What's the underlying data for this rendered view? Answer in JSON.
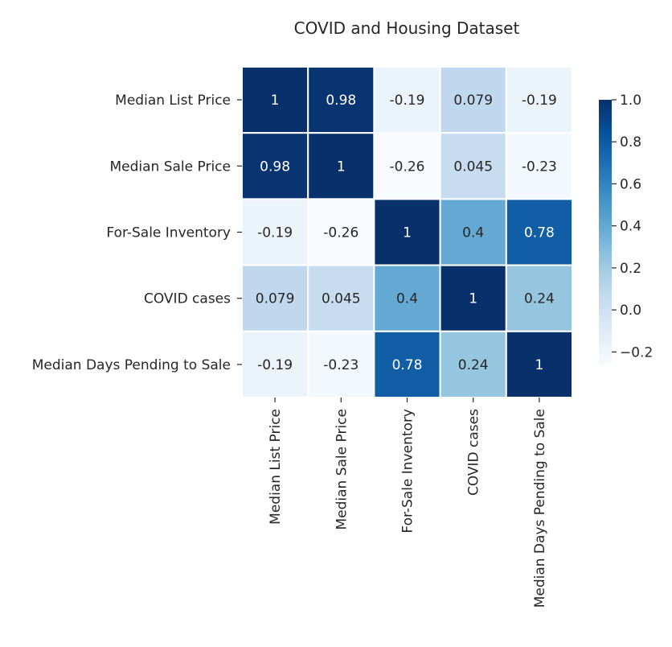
{
  "chart_data": {
    "type": "heatmap",
    "title": "COVID and Housing Dataset",
    "xlabel": "",
    "ylabel": "",
    "row_labels": [
      "Median List Price",
      "Median Sale Price",
      "For-Sale Inventory",
      "COVID cases",
      "Median Days Pending to Sale"
    ],
    "col_labels": [
      "Median List Price",
      "Median Sale Price",
      "For-Sale Inventory",
      "COVID cases",
      "Median Days Pending to Sale"
    ],
    "values": [
      [
        1,
        0.98,
        -0.19,
        0.079,
        -0.19
      ],
      [
        0.98,
        1,
        -0.26,
        0.045,
        -0.23
      ],
      [
        -0.19,
        -0.26,
        1,
        0.4,
        0.78
      ],
      [
        0.079,
        0.045,
        0.4,
        1,
        0.24
      ],
      [
        -0.19,
        -0.23,
        0.78,
        0.24,
        1
      ]
    ],
    "value_labels": [
      [
        "1",
        "0.98",
        "-0.19",
        "0.079",
        "-0.19"
      ],
      [
        "0.98",
        "1",
        "-0.26",
        "0.045",
        "-0.23"
      ],
      [
        "-0.19",
        "-0.26",
        "1",
        "0.4",
        "0.78"
      ],
      [
        "0.079",
        "0.045",
        "0.4",
        "1",
        "0.24"
      ],
      [
        "-0.19",
        "-0.23",
        "0.78",
        "0.24",
        "1"
      ]
    ],
    "colormap": "Blues",
    "vmin": -0.26,
    "vmax": 1.0,
    "cell_border_color": "#ffffff",
    "colorbar": {
      "ticks": [
        1.0,
        0.8,
        0.6,
        0.4,
        0.2,
        0.0,
        -0.2
      ],
      "tick_labels": [
        "1.0",
        "0.8",
        "0.6",
        "0.4",
        "0.2",
        "0.0",
        "−0.2"
      ]
    },
    "grid": false,
    "legend": "colorbar-right"
  }
}
